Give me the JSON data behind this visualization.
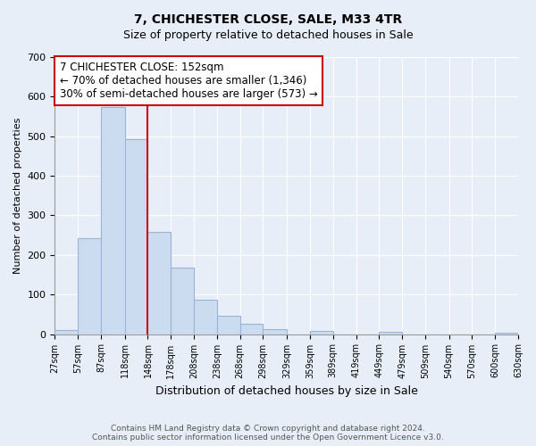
{
  "title": "7, CHICHESTER CLOSE, SALE, M33 4TR",
  "subtitle": "Size of property relative to detached houses in Sale",
  "xlabel": "Distribution of detached houses by size in Sale",
  "ylabel": "Number of detached properties",
  "bar_color": "#ccdcf0",
  "bar_edge_color": "#9ab4d8",
  "bins": [
    27,
    57,
    87,
    118,
    148,
    178,
    208,
    238,
    268,
    298,
    329,
    359,
    389,
    419,
    449,
    479,
    509,
    540,
    570,
    600,
    630
  ],
  "counts": [
    10,
    243,
    573,
    493,
    258,
    168,
    88,
    46,
    27,
    13,
    0,
    8,
    0,
    0,
    5,
    0,
    0,
    0,
    0,
    4
  ],
  "tick_labels": [
    "27sqm",
    "57sqm",
    "87sqm",
    "118sqm",
    "148sqm",
    "178sqm",
    "208sqm",
    "238sqm",
    "268sqm",
    "298sqm",
    "329sqm",
    "359sqm",
    "389sqm",
    "419sqm",
    "449sqm",
    "479sqm",
    "509sqm",
    "540sqm",
    "570sqm",
    "600sqm",
    "630sqm"
  ],
  "vline_x": 148,
  "vline_color": "#cc0000",
  "annotation_line1": "7 CHICHESTER CLOSE: 152sqm",
  "annotation_line2": "← 70% of detached houses are smaller (1,346)",
  "annotation_line3": "30% of semi-detached houses are larger (573) →",
  "annotation_box_color": "#ffffff",
  "annotation_box_edge": "#cc0000",
  "ylim": [
    0,
    700
  ],
  "yticks": [
    0,
    100,
    200,
    300,
    400,
    500,
    600,
    700
  ],
  "footnote": "Contains HM Land Registry data © Crown copyright and database right 2024.\nContains public sector information licensed under the Open Government Licence v3.0.",
  "background_color": "#e8eef8",
  "grid_color": "#ffffff",
  "title_fontsize": 10,
  "subtitle_fontsize": 9
}
